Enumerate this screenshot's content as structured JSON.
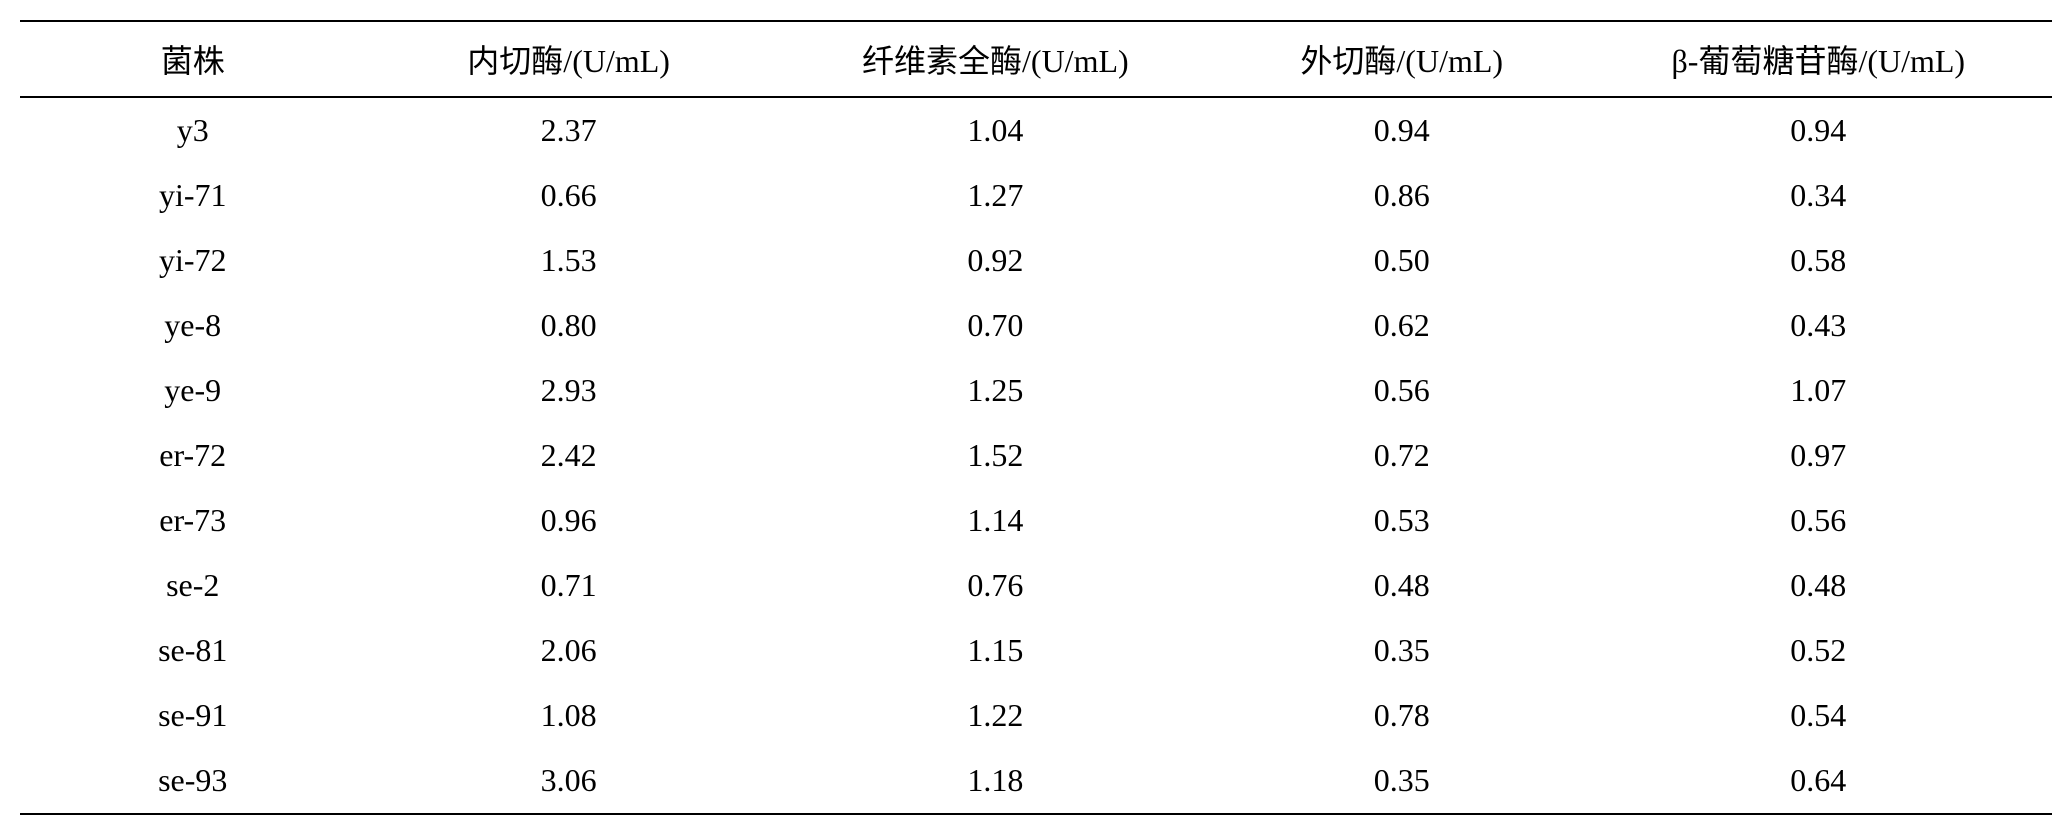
{
  "table": {
    "columns": [
      "菌株",
      "内切酶/(U/mL)",
      "纤维素全酶/(U/mL)",
      "外切酶/(U/mL)",
      "β-葡萄糖苷酶/(U/mL)"
    ],
    "rows": [
      [
        "y3",
        "2.37",
        "1.04",
        "0.94",
        "0.94"
      ],
      [
        "yi-71",
        "0.66",
        "1.27",
        "0.86",
        "0.34"
      ],
      [
        "yi-72",
        "1.53",
        "0.92",
        "0.50",
        "0.58"
      ],
      [
        "ye-8",
        "0.80",
        "0.70",
        "0.62",
        "0.43"
      ],
      [
        "ye-9",
        "2.93",
        "1.25",
        "0.56",
        "1.07"
      ],
      [
        "er-72",
        "2.42",
        "1.52",
        "0.72",
        "0.97"
      ],
      [
        "er-73",
        "0.96",
        "1.14",
        "0.53",
        "0.56"
      ],
      [
        "se-2",
        "0.71",
        "0.76",
        "0.48",
        "0.48"
      ],
      [
        "se-81",
        "2.06",
        "1.15",
        "0.35",
        "0.52"
      ],
      [
        "se-91",
        "1.08",
        "1.22",
        "0.78",
        "0.54"
      ],
      [
        "se-93",
        "3.06",
        "1.18",
        "0.35",
        "0.64"
      ]
    ],
    "border_color": "#000000",
    "background_color": "#ffffff",
    "text_color": "#000000",
    "header_fontsize": 32,
    "body_fontsize": 32
  }
}
